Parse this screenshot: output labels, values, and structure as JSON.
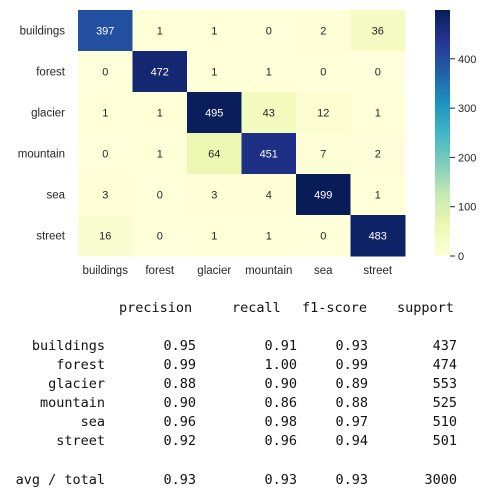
{
  "chart_data": {
    "type": "heatmap",
    "title": "",
    "xlabel": "",
    "ylabel": "",
    "x_categories": [
      "buildings",
      "forest",
      "glacier",
      "mountain",
      "sea",
      "street"
    ],
    "y_categories": [
      "buildings",
      "forest",
      "glacier",
      "mountain",
      "sea",
      "street"
    ],
    "values": [
      [
        397,
        1,
        1,
        0,
        2,
        36
      ],
      [
        0,
        472,
        1,
        1,
        0,
        0
      ],
      [
        1,
        1,
        495,
        43,
        12,
        1
      ],
      [
        0,
        1,
        64,
        451,
        7,
        2
      ],
      [
        3,
        0,
        3,
        4,
        499,
        1
      ],
      [
        16,
        0,
        1,
        1,
        0,
        483
      ]
    ],
    "colormap": "YlGnBu",
    "vmin": 0,
    "vmax": 499,
    "annotations": true,
    "colorbar": {
      "ticks": [
        0,
        100,
        200,
        300,
        400
      ],
      "tick_labels": [
        "0",
        "100",
        "200",
        "300",
        "400"
      ]
    }
  },
  "report": {
    "headers": [
      "precision",
      "recall",
      "f1-score",
      "support"
    ],
    "rows": [
      {
        "label": "buildings",
        "precision": "0.95",
        "recall": "0.91",
        "f1": "0.93",
        "support": "437"
      },
      {
        "label": "forest",
        "precision": "0.99",
        "recall": "1.00",
        "f1": "0.99",
        "support": "474"
      },
      {
        "label": "glacier",
        "precision": "0.88",
        "recall": "0.90",
        "f1": "0.89",
        "support": "553"
      },
      {
        "label": "mountain",
        "precision": "0.90",
        "recall": "0.86",
        "f1": "0.88",
        "support": "525"
      },
      {
        "label": "sea",
        "precision": "0.96",
        "recall": "0.98",
        "f1": "0.97",
        "support": "510"
      },
      {
        "label": "street",
        "precision": "0.92",
        "recall": "0.96",
        "f1": "0.94",
        "support": "501"
      }
    ],
    "total": {
      "label": "avg / total",
      "precision": "0.93",
      "recall": "0.93",
      "f1": "0.93",
      "support": "3000"
    }
  }
}
